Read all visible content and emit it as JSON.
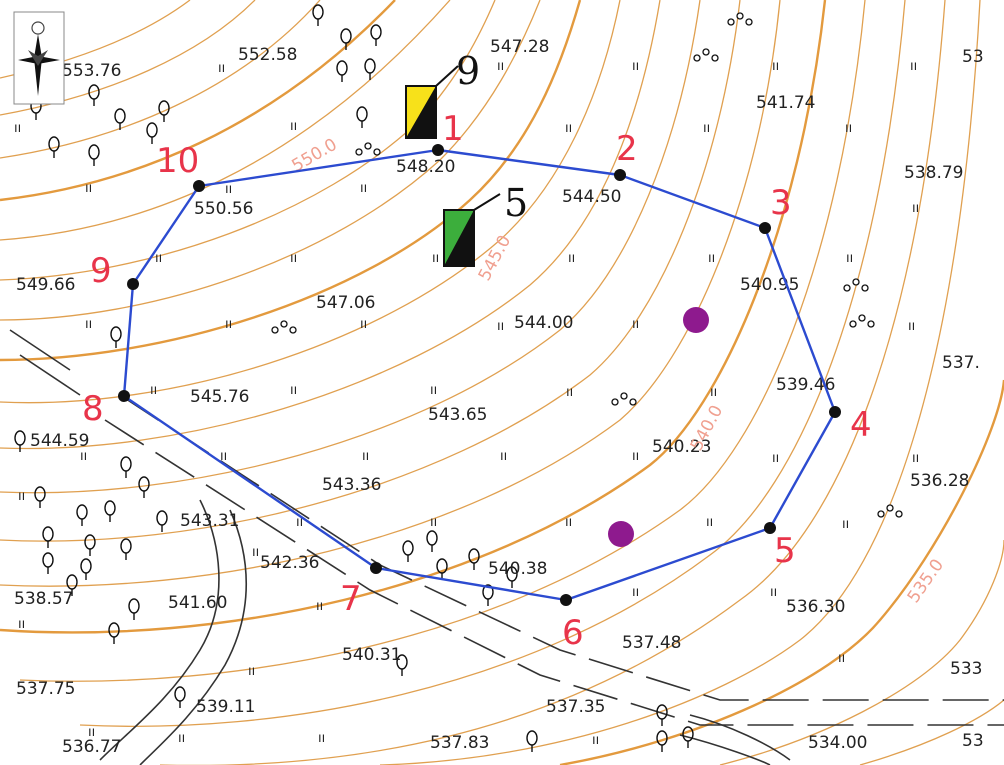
{
  "elevations": [
    "553.76",
    "552.58",
    "547.28",
    "541.74",
    "538.79",
    "549.66",
    "550.56",
    "548.20",
    "544.50",
    "547.06",
    "544.00",
    "540.95",
    "545.76",
    "543.65",
    "539.46",
    "540.23",
    "544.59",
    "543.36",
    "536.28",
    "543.31",
    "542.36",
    "540.38",
    "541.60",
    "538.57",
    "536.30",
    "537.48",
    "540.31",
    "537.75",
    "539.11",
    "537.35",
    "536.77",
    "537.83",
    "534.00",
    "53",
    "537.",
    "533",
    "53"
  ],
  "contour_labels": [
    "550.0",
    "545.0",
    "540.0",
    "535.0"
  ],
  "boundary_points": [
    "1",
    "2",
    "3",
    "4",
    "5",
    "6",
    "7",
    "8",
    "9",
    "10"
  ],
  "signs": [
    {
      "number": "9",
      "color": "#f7e11a"
    },
    {
      "number": "5",
      "color": "#3cae3c"
    }
  ],
  "colors": {
    "contour": "#e39a3e",
    "boundary": "#2c4bd0",
    "point_label": "#e8344a",
    "poi": "#8e1a8e"
  },
  "icons": {
    "compass": "compass-rose-icon",
    "tree": "tree-icon",
    "shrub": "shrub-icon",
    "grass": "grass-mark-icon"
  }
}
